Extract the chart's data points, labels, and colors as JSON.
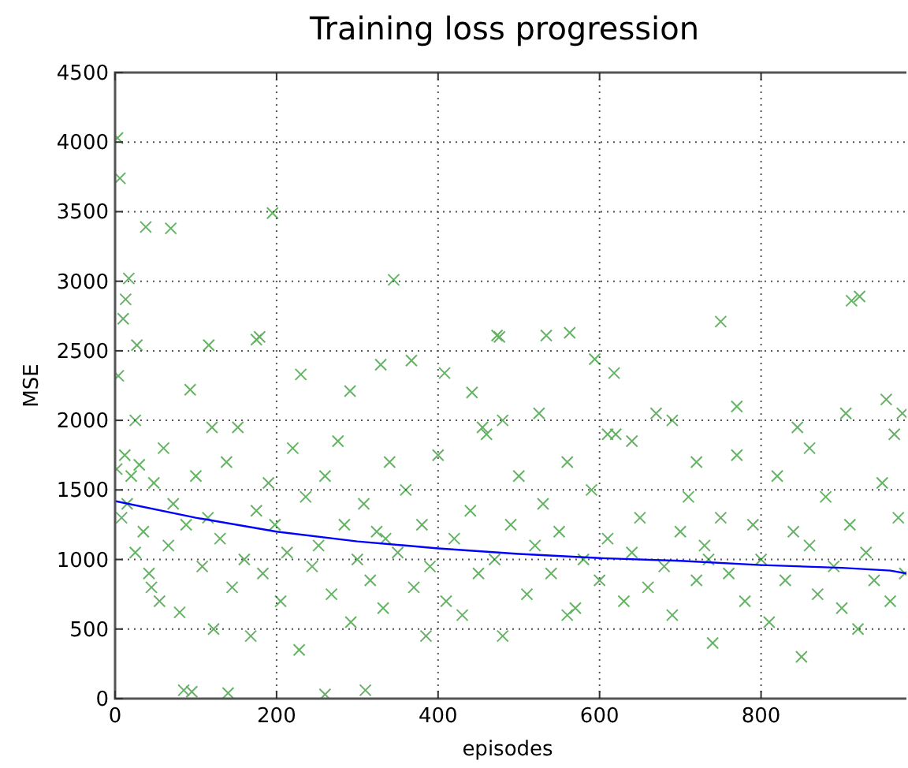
{
  "chart_data": {
    "type": "scatter",
    "title": "Training loss progression",
    "xlabel": "episodes",
    "ylabel": "MSE",
    "xlim": [
      0,
      980
    ],
    "ylim": [
      0,
      4500
    ],
    "xticks": [
      0,
      200,
      400,
      600,
      800
    ],
    "yticks": [
      0,
      500,
      1000,
      1500,
      2000,
      2500,
      3000,
      3500,
      4000,
      4500
    ],
    "grid": true,
    "series": [
      {
        "color": "#008000",
        "marker": "cross",
        "x": [
          3,
          6,
          38,
          69,
          195,
          10,
          13,
          17,
          27,
          116,
          179,
          175,
          345,
          473,
          4,
          93,
          230,
          291,
          329,
          367,
          408,
          442,
          476,
          534,
          563,
          750,
          912,
          922,
          594,
          618,
          2,
          8,
          12,
          20,
          25,
          30,
          35,
          42,
          48,
          55,
          60,
          66,
          72,
          80,
          88,
          95,
          100,
          108,
          115,
          122,
          130,
          138,
          145,
          152,
          160,
          168,
          175,
          183,
          190,
          198,
          205,
          213,
          220,
          228,
          236,
          244,
          252,
          260,
          268,
          276,
          284,
          292,
          300,
          308,
          316,
          324,
          332,
          340,
          350,
          360,
          370,
          380,
          390,
          400,
          410,
          420,
          430,
          440,
          450,
          460,
          470,
          480,
          490,
          500,
          510,
          520,
          530,
          540,
          550,
          560,
          570,
          580,
          590,
          600,
          610,
          620,
          630,
          640,
          650,
          660,
          670,
          680,
          690,
          700,
          710,
          720,
          730,
          740,
          750,
          760,
          770,
          780,
          790,
          800,
          810,
          820,
          830,
          840,
          850,
          860,
          870,
          880,
          890,
          900,
          910,
          920,
          930,
          940,
          950,
          960,
          970,
          978,
          335,
          560,
          720,
          735,
          15,
          45,
          85,
          140,
          260,
          310,
          385,
          455,
          525,
          640,
          690,
          770,
          845,
          905,
          955,
          965,
          975,
          25,
          120,
          480,
          610,
          860
        ],
        "values": [
          4030,
          3740,
          3390,
          3380,
          3490,
          2730,
          2870,
          3020,
          2540,
          2540,
          2600,
          2580,
          3010,
          2610,
          2320,
          2220,
          2330,
          2210,
          2400,
          2430,
          2340,
          2200,
          2600,
          2610,
          2630,
          2710,
          2860,
          2890,
          2440,
          2340,
          1650,
          1300,
          1750,
          1600,
          1050,
          1680,
          1200,
          900,
          1550,
          700,
          1800,
          1100,
          1400,
          620,
          1250,
          50,
          1600,
          950,
          1300,
          500,
          1150,
          1700,
          800,
          1950,
          1000,
          450,
          1350,
          900,
          1550,
          1250,
          700,
          1050,
          1800,
          350,
          1450,
          950,
          1100,
          1600,
          750,
          1850,
          1250,
          550,
          1000,
          1400,
          850,
          1200,
          650,
          1700,
          1050,
          1500,
          800,
          1250,
          950,
          1750,
          700,
          1150,
          600,
          1350,
          900,
          1900,
          1000,
          450,
          1250,
          1600,
          750,
          1100,
          1400,
          900,
          1200,
          1700,
          650,
          1000,
          1500,
          850,
          1150,
          1900,
          700,
          1050,
          1300,
          800,
          2050,
          950,
          600,
          1200,
          1450,
          850,
          1100,
          400,
          1300,
          900,
          1750,
          700,
          1250,
          1000,
          550,
          1600,
          850,
          1200,
          300,
          1100,
          750,
          1450,
          950,
          650,
          1250,
          500,
          1050,
          850,
          1550,
          700,
          1300,
          900,
          1150,
          600,
          1700,
          1000,
          1400,
          800,
          60,
          40,
          30,
          60,
          450,
          1950,
          2050,
          1850,
          2000,
          2100,
          1950,
          2050,
          2150,
          1900,
          2050,
          2000,
          1950,
          2000,
          1900,
          1800
        ]
      },
      {
        "type": "line",
        "color": "#0000ff",
        "x": [
          0,
          100,
          200,
          300,
          400,
          500,
          600,
          700,
          800,
          900,
          960,
          980
        ],
        "values": [
          1420,
          1300,
          1200,
          1130,
          1080,
          1040,
          1010,
          990,
          960,
          940,
          920,
          900
        ]
      }
    ]
  }
}
